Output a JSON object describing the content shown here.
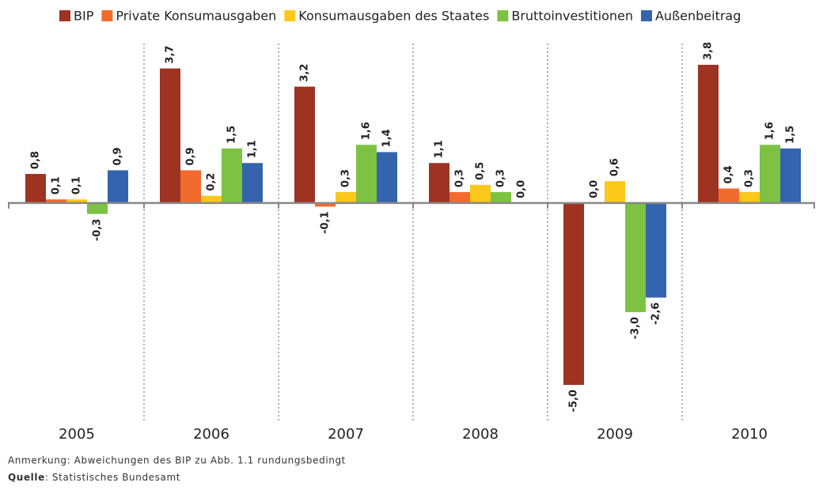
{
  "chart_data": {
    "type": "bar",
    "categories": [
      "2005",
      "2006",
      "2007",
      "2008",
      "2009",
      "2010"
    ],
    "series": [
      {
        "name": "BIP",
        "color": "#9e3322",
        "values": [
          0.8,
          3.7,
          3.2,
          1.1,
          -5.0,
          3.8
        ],
        "value_labels": [
          "0,8",
          "3,7",
          "3,2",
          "1,1",
          "-5,0",
          "3,8"
        ]
      },
      {
        "name": "Private Konsumausgaben",
        "color": "#f26b2d",
        "values": [
          0.1,
          0.9,
          -0.1,
          0.3,
          0.0,
          0.4
        ],
        "value_labels": [
          "0,1",
          "0,9",
          "-0,1",
          "0,3",
          "0,0",
          "0,4"
        ]
      },
      {
        "name": "Konsumausgaben des Staates",
        "color": "#fcc81a",
        "values": [
          0.1,
          0.2,
          0.3,
          0.5,
          0.6,
          0.3
        ],
        "value_labels": [
          "0,1",
          "0,2",
          "0,3",
          "0,5",
          "0,6",
          "0,3"
        ]
      },
      {
        "name": "Bruttoinvestitionen",
        "color": "#7dc242",
        "values": [
          -0.3,
          1.5,
          1.6,
          0.3,
          -3.0,
          1.6
        ],
        "value_labels": [
          "-0,3",
          "1,5",
          "1,6",
          "0,3",
          "-3,0",
          "1,6"
        ]
      },
      {
        "name": "Außenbeitrag",
        "color": "#3464ad",
        "values": [
          0.9,
          1.1,
          1.4,
          0.0,
          -2.6,
          1.5
        ],
        "value_labels": [
          "0,9",
          "1,1",
          "1,4",
          "0,0",
          "-2,6",
          "1,5"
        ]
      }
    ],
    "note": "Anmerkung: Abweichungen des BIP zu Abb. 1.1 rundungsbedingt",
    "source_label": "Quelle",
    "source": ": Statistisches Bundesamt"
  }
}
